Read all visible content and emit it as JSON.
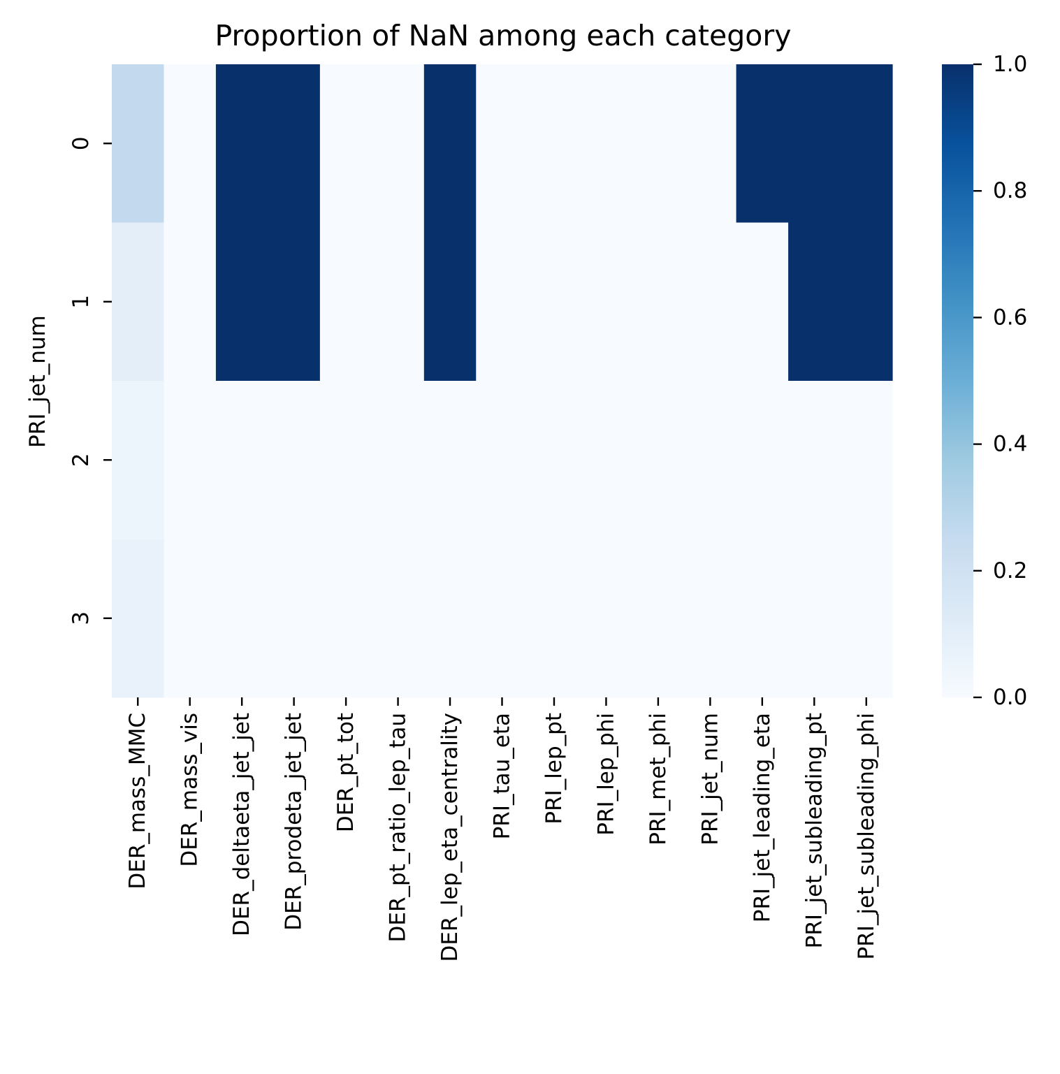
{
  "chart_data": {
    "type": "heatmap",
    "title": "Proportion of NaN among each category",
    "xlabel": "",
    "ylabel": "PRI_jet_num",
    "columns": [
      "DER_mass_MMC",
      "DER_mass_vis",
      "DER_deltaeta_jet_jet",
      "DER_prodeta_jet_jet",
      "DER_pt_tot",
      "DER_pt_ratio_lep_tau",
      "DER_lep_eta_centrality",
      "PRI_tau_eta",
      "PRI_lep_pt",
      "PRI_lep_phi",
      "PRI_met_phi",
      "PRI_jet_num",
      "PRI_jet_leading_eta",
      "PRI_jet_subleading_pt",
      "PRI_jet_subleading_phi"
    ],
    "rows": [
      "0",
      "1",
      "2",
      "3"
    ],
    "values": [
      [
        0.26,
        0,
        1,
        1,
        0,
        0,
        1,
        0,
        0,
        0,
        0,
        0,
        1,
        1,
        1
      ],
      [
        0.1,
        0,
        1,
        1,
        0,
        0,
        1,
        0,
        0,
        0,
        0,
        0,
        0,
        1,
        1
      ],
      [
        0.05,
        0,
        0,
        0,
        0,
        0,
        0,
        0,
        0,
        0,
        0,
        0,
        0,
        0,
        0
      ],
      [
        0.07,
        0,
        0,
        0,
        0,
        0,
        0,
        0,
        0,
        0,
        0,
        0,
        0,
        0,
        0
      ]
    ],
    "colorbar": {
      "colormap": "Blues",
      "vmin": 0.0,
      "vmax": 1.0,
      "ticks": [
        "0.0",
        "0.2",
        "0.4",
        "0.6",
        "0.8",
        "1.0"
      ]
    },
    "colors": [
      "#f7fbff",
      "#deebf7",
      "#c6dbef",
      "#9ecae1",
      "#6baed6",
      "#4292c6",
      "#2171b5",
      "#08519c",
      "#08306b"
    ]
  }
}
